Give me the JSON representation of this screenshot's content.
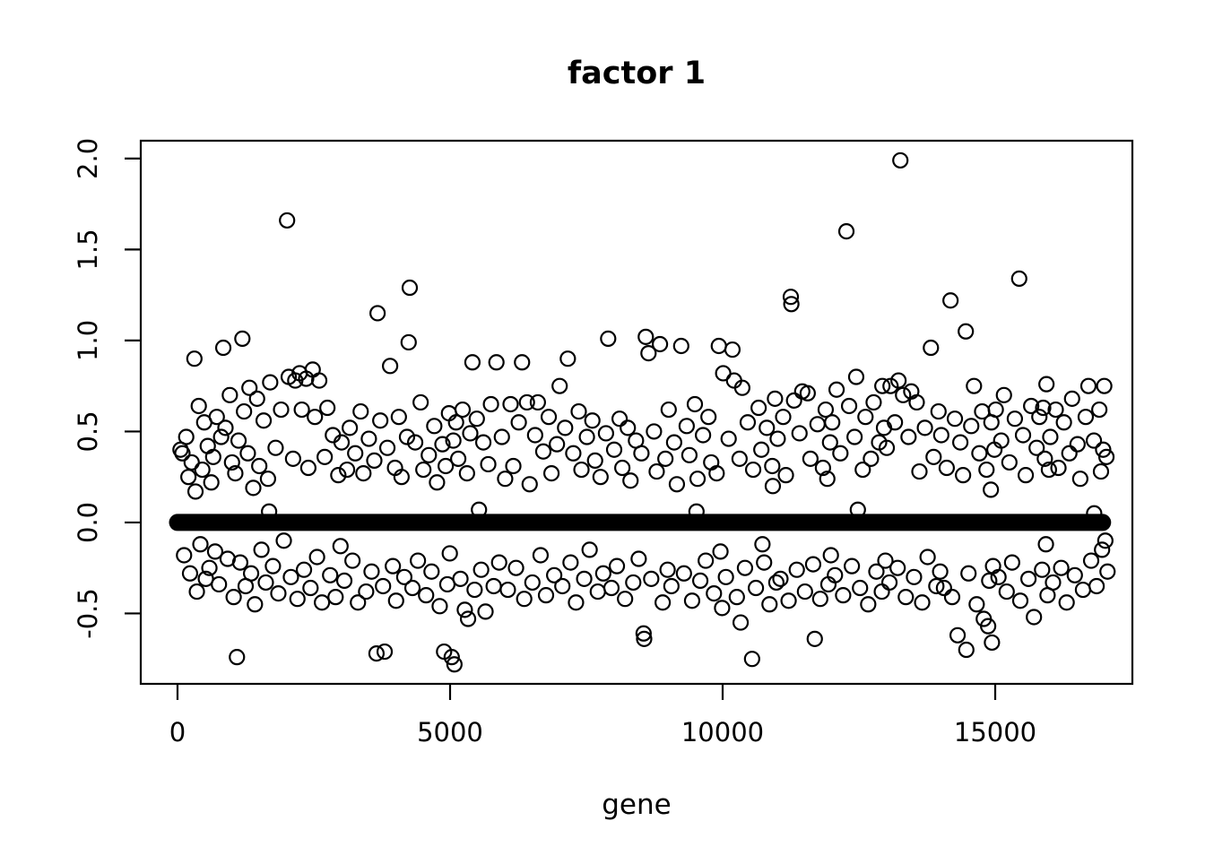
{
  "colors": {
    "foreground": "#000000",
    "background": "#ffffff"
  },
  "chart_data": {
    "type": "scatter",
    "title": "factor 1",
    "xlabel": "gene",
    "ylabel": "",
    "grid": false,
    "legend": null,
    "xlim": [
      -674,
      17516
    ],
    "ylim": [
      -0.887,
      2.098
    ],
    "x_ticks": [
      0,
      5000,
      10000,
      15000
    ],
    "x_tick_labels": [
      "0",
      "5000",
      "10000",
      "15000"
    ],
    "y_ticks": [
      -0.5,
      0.0,
      0.5,
      1.0,
      1.5,
      2.0
    ],
    "y_tick_labels": [
      "-0.5",
      "0.0",
      "0.5",
      "1.0",
      "1.5",
      "2.0"
    ],
    "marker": {
      "shape": "open-circle",
      "radius_px": 8,
      "stroke": "#000000"
    },
    "zero_band": {
      "y": 0.0,
      "x_start": 0,
      "x_end": 16970,
      "thickness_px": 19,
      "note": "dense run of genes with loading 0"
    },
    "points": [
      [
        55,
        0.4
      ],
      [
        90,
        0.38
      ],
      [
        120,
        -0.18
      ],
      [
        160,
        0.47
      ],
      [
        200,
        0.25
      ],
      [
        230,
        -0.28
      ],
      [
        260,
        0.33
      ],
      [
        310,
        0.9
      ],
      [
        330,
        0.17
      ],
      [
        355,
        -0.38
      ],
      [
        390,
        0.64
      ],
      [
        420,
        -0.12
      ],
      [
        455,
        0.29
      ],
      [
        490,
        0.55
      ],
      [
        520,
        -0.31
      ],
      [
        555,
        0.42
      ],
      [
        585,
        -0.25
      ],
      [
        620,
        0.22
      ],
      [
        655,
        0.36
      ],
      [
        690,
        -0.16
      ],
      [
        720,
        0.58
      ],
      [
        760,
        -0.34
      ],
      [
        800,
        0.47
      ],
      [
        840,
        0.96
      ],
      [
        880,
        0.52
      ],
      [
        920,
        -0.2
      ],
      [
        960,
        0.7
      ],
      [
        1000,
        0.33
      ],
      [
        1030,
        -0.41
      ],
      [
        1060,
        0.27
      ],
      [
        1090,
        -0.74
      ],
      [
        1120,
        0.45
      ],
      [
        1150,
        -0.22
      ],
      [
        1190,
        1.01
      ],
      [
        1220,
        0.61
      ],
      [
        1250,
        -0.35
      ],
      [
        1290,
        0.38
      ],
      [
        1320,
        0.74
      ],
      [
        1350,
        -0.28
      ],
      [
        1390,
        0.19
      ],
      [
        1420,
        -0.45
      ],
      [
        1460,
        0.68
      ],
      [
        1500,
        0.31
      ],
      [
        1540,
        -0.15
      ],
      [
        1580,
        0.56
      ],
      [
        1620,
        -0.33
      ],
      [
        1660,
        0.24
      ],
      [
        1680,
        0.06
      ],
      [
        1700,
        0.77
      ],
      [
        1750,
        -0.24
      ],
      [
        1800,
        0.41
      ],
      [
        1850,
        -0.39
      ],
      [
        1900,
        0.62
      ],
      [
        1950,
        -0.1
      ],
      [
        2010,
        1.66
      ],
      [
        2040,
        0.8
      ],
      [
        2080,
        -0.3
      ],
      [
        2120,
        0.35
      ],
      [
        2160,
        0.78
      ],
      [
        2200,
        -0.42
      ],
      [
        2240,
        0.82
      ],
      [
        2280,
        0.62
      ],
      [
        2320,
        -0.26
      ],
      [
        2360,
        0.79
      ],
      [
        2400,
        0.3
      ],
      [
        2440,
        -0.36
      ],
      [
        2480,
        0.84
      ],
      [
        2520,
        0.58
      ],
      [
        2560,
        -0.19
      ],
      [
        2600,
        0.78
      ],
      [
        2650,
        -0.44
      ],
      [
        2700,
        0.36
      ],
      [
        2750,
        0.63
      ],
      [
        2800,
        -0.29
      ],
      [
        2850,
        0.48
      ],
      [
        2900,
        -0.41
      ],
      [
        2950,
        0.26
      ],
      [
        2990,
        -0.13
      ],
      [
        3010,
        0.44
      ],
      [
        3060,
        -0.32
      ],
      [
        3110,
        0.29
      ],
      [
        3160,
        0.52
      ],
      [
        3210,
        -0.21
      ],
      [
        3260,
        0.38
      ],
      [
        3310,
        -0.44
      ],
      [
        3360,
        0.61
      ],
      [
        3410,
        0.27
      ],
      [
        3460,
        -0.38
      ],
      [
        3510,
        0.46
      ],
      [
        3560,
        -0.27
      ],
      [
        3610,
        0.34
      ],
      [
        3650,
        -0.72
      ],
      [
        3670,
        1.15
      ],
      [
        3720,
        0.56
      ],
      [
        3770,
        -0.35
      ],
      [
        3800,
        -0.71
      ],
      [
        3850,
        0.41
      ],
      [
        3900,
        0.86
      ],
      [
        3950,
        -0.24
      ],
      [
        3990,
        0.3
      ],
      [
        4010,
        -0.43
      ],
      [
        4060,
        0.58
      ],
      [
        4110,
        0.25
      ],
      [
        4160,
        -0.3
      ],
      [
        4210,
        0.47
      ],
      [
        4240,
        0.99
      ],
      [
        4260,
        1.29
      ],
      [
        4310,
        -0.36
      ],
      [
        4360,
        0.44
      ],
      [
        4410,
        -0.21
      ],
      [
        4460,
        0.66
      ],
      [
        4510,
        0.29
      ],
      [
        4560,
        -0.4
      ],
      [
        4610,
        0.37
      ],
      [
        4660,
        -0.27
      ],
      [
        4710,
        0.53
      ],
      [
        4760,
        0.22
      ],
      [
        4810,
        -0.46
      ],
      [
        4860,
        0.43
      ],
      [
        4890,
        -0.71
      ],
      [
        4920,
        0.31
      ],
      [
        4950,
        -0.34
      ],
      [
        4980,
        0.6
      ],
      [
        4995,
        -0.17
      ],
      [
        5030,
        -0.74
      ],
      [
        5060,
        0.45
      ],
      [
        5080,
        -0.78
      ],
      [
        5110,
        0.55
      ],
      [
        5150,
        0.35
      ],
      [
        5190,
        -0.31
      ],
      [
        5230,
        0.62
      ],
      [
        5270,
        -0.48
      ],
      [
        5310,
        0.27
      ],
      [
        5330,
        -0.53
      ],
      [
        5370,
        0.49
      ],
      [
        5410,
        0.88
      ],
      [
        5450,
        -0.37
      ],
      [
        5490,
        0.57
      ],
      [
        5530,
        0.07
      ],
      [
        5570,
        -0.26
      ],
      [
        5610,
        0.44
      ],
      [
        5650,
        -0.49
      ],
      [
        5700,
        0.32
      ],
      [
        5750,
        0.65
      ],
      [
        5800,
        -0.35
      ],
      [
        5850,
        0.88
      ],
      [
        5900,
        -0.22
      ],
      [
        5950,
        0.47
      ],
      [
        6010,
        0.24
      ],
      [
        6060,
        -0.37
      ],
      [
        6110,
        0.65
      ],
      [
        6160,
        0.31
      ],
      [
        6210,
        -0.25
      ],
      [
        6260,
        0.55
      ],
      [
        6320,
        0.88
      ],
      [
        6360,
        -0.42
      ],
      [
        6410,
        0.66
      ],
      [
        6460,
        0.21
      ],
      [
        6510,
        -0.33
      ],
      [
        6560,
        0.48
      ],
      [
        6610,
        0.66
      ],
      [
        6660,
        -0.18
      ],
      [
        6710,
        0.39
      ],
      [
        6760,
        -0.4
      ],
      [
        6810,
        0.58
      ],
      [
        6860,
        0.27
      ],
      [
        6910,
        -0.29
      ],
      [
        6960,
        0.43
      ],
      [
        7010,
        0.75
      ],
      [
        7060,
        -0.35
      ],
      [
        7110,
        0.52
      ],
      [
        7160,
        0.9
      ],
      [
        7210,
        -0.22
      ],
      [
        7260,
        0.38
      ],
      [
        7310,
        -0.44
      ],
      [
        7360,
        0.61
      ],
      [
        7410,
        0.29
      ],
      [
        7460,
        -0.31
      ],
      [
        7510,
        0.47
      ],
      [
        7560,
        -0.15
      ],
      [
        7610,
        0.56
      ],
      [
        7660,
        0.34
      ],
      [
        7710,
        -0.38
      ],
      [
        7760,
        0.25
      ],
      [
        7810,
        -0.28
      ],
      [
        7860,
        0.49
      ],
      [
        7900,
        1.01
      ],
      [
        7960,
        -0.36
      ],
      [
        8010,
        0.4
      ],
      [
        8060,
        -0.24
      ],
      [
        8110,
        0.57
      ],
      [
        8160,
        0.3
      ],
      [
        8210,
        -0.42
      ],
      [
        8260,
        0.52
      ],
      [
        8310,
        0.23
      ],
      [
        8360,
        -0.33
      ],
      [
        8410,
        0.45
      ],
      [
        8460,
        -0.2
      ],
      [
        8510,
        0.38
      ],
      [
        8550,
        -0.61
      ],
      [
        8560,
        -0.64
      ],
      [
        8590,
        1.02
      ],
      [
        8640,
        0.93
      ],
      [
        8690,
        -0.31
      ],
      [
        8740,
        0.5
      ],
      [
        8790,
        0.28
      ],
      [
        8850,
        0.98
      ],
      [
        8900,
        -0.44
      ],
      [
        8950,
        0.35
      ],
      [
        8990,
        -0.26
      ],
      [
        9010,
        0.62
      ],
      [
        9060,
        -0.35
      ],
      [
        9110,
        0.44
      ],
      [
        9160,
        0.21
      ],
      [
        9240,
        0.97
      ],
      [
        9290,
        -0.28
      ],
      [
        9340,
        0.53
      ],
      [
        9390,
        0.37
      ],
      [
        9440,
        -0.43
      ],
      [
        9490,
        0.65
      ],
      [
        9520,
        0.06
      ],
      [
        9540,
        0.24
      ],
      [
        9590,
        -0.32
      ],
      [
        9640,
        0.48
      ],
      [
        9690,
        -0.21
      ],
      [
        9740,
        0.58
      ],
      [
        9790,
        0.33
      ],
      [
        9840,
        -0.39
      ],
      [
        9890,
        0.27
      ],
      [
        9930,
        0.97
      ],
      [
        9960,
        -0.16
      ],
      [
        9990,
        -0.47
      ],
      [
        10010,
        0.82
      ],
      [
        10060,
        -0.3
      ],
      [
        10110,
        0.46
      ],
      [
        10180,
        0.95
      ],
      [
        10210,
        0.78
      ],
      [
        10260,
        -0.41
      ],
      [
        10310,
        0.35
      ],
      [
        10330,
        -0.55
      ],
      [
        10360,
        0.74
      ],
      [
        10410,
        -0.25
      ],
      [
        10460,
        0.55
      ],
      [
        10540,
        -0.75
      ],
      [
        10560,
        0.29
      ],
      [
        10610,
        -0.36
      ],
      [
        10660,
        0.63
      ],
      [
        10710,
        0.4
      ],
      [
        10730,
        -0.12
      ],
      [
        10760,
        -0.22
      ],
      [
        10810,
        0.52
      ],
      [
        10860,
        -0.45
      ],
      [
        10910,
        0.31
      ],
      [
        10920,
        0.2
      ],
      [
        10960,
        0.68
      ],
      [
        10985,
        -0.33
      ],
      [
        11010,
        0.46
      ],
      [
        11060,
        -0.31
      ],
      [
        11110,
        0.58
      ],
      [
        11160,
        0.26
      ],
      [
        11210,
        -0.43
      ],
      [
        11250,
        1.24
      ],
      [
        11260,
        1.2
      ],
      [
        11310,
        0.67
      ],
      [
        11360,
        -0.26
      ],
      [
        11410,
        0.49
      ],
      [
        11460,
        0.72
      ],
      [
        11510,
        -0.38
      ],
      [
        11560,
        0.71
      ],
      [
        11610,
        0.35
      ],
      [
        11660,
        -0.23
      ],
      [
        11690,
        -0.64
      ],
      [
        11740,
        0.54
      ],
      [
        11790,
        -0.42
      ],
      [
        11840,
        0.3
      ],
      [
        11890,
        0.62
      ],
      [
        11920,
        0.24
      ],
      [
        11940,
        -0.34
      ],
      [
        11970,
        0.44
      ],
      [
        11985,
        -0.18
      ],
      [
        12010,
        0.55
      ],
      [
        12060,
        -0.29
      ],
      [
        12090,
        0.73
      ],
      [
        12160,
        0.38
      ],
      [
        12210,
        -0.4
      ],
      [
        12270,
        1.6
      ],
      [
        12320,
        0.64
      ],
      [
        12370,
        -0.24
      ],
      [
        12420,
        0.47
      ],
      [
        12450,
        0.8
      ],
      [
        12480,
        0.07
      ],
      [
        12520,
        -0.36
      ],
      [
        12570,
        0.29
      ],
      [
        12620,
        0.58
      ],
      [
        12670,
        -0.45
      ],
      [
        12720,
        0.35
      ],
      [
        12770,
        0.66
      ],
      [
        12820,
        -0.27
      ],
      [
        12870,
        0.44
      ],
      [
        12920,
        -0.38
      ],
      [
        12930,
        0.75
      ],
      [
        12960,
        0.52
      ],
      [
        12985,
        -0.21
      ],
      [
        13010,
        0.41
      ],
      [
        13060,
        -0.33
      ],
      [
        13080,
        0.75
      ],
      [
        13160,
        0.55
      ],
      [
        13210,
        -0.25
      ],
      [
        13226,
        0.78
      ],
      [
        13260,
        1.99
      ],
      [
        13310,
        0.7
      ],
      [
        13360,
        -0.41
      ],
      [
        13410,
        0.47
      ],
      [
        13460,
        0.72
      ],
      [
        13510,
        -0.3
      ],
      [
        13560,
        0.66
      ],
      [
        13610,
        0.28
      ],
      [
        13660,
        -0.44
      ],
      [
        13710,
        0.52
      ],
      [
        13760,
        -0.19
      ],
      [
        13820,
        0.96
      ],
      [
        13870,
        0.36
      ],
      [
        13920,
        -0.35
      ],
      [
        13960,
        0.61
      ],
      [
        13990,
        -0.27
      ],
      [
        14010,
        0.48
      ],
      [
        14060,
        -0.36
      ],
      [
        14110,
        0.3
      ],
      [
        14180,
        1.22
      ],
      [
        14210,
        -0.41
      ],
      [
        14260,
        0.57
      ],
      [
        14310,
        -0.62
      ],
      [
        14360,
        0.44
      ],
      [
        14410,
        0.26
      ],
      [
        14460,
        1.05
      ],
      [
        14470,
        -0.7
      ],
      [
        14510,
        -0.28
      ],
      [
        14560,
        0.53
      ],
      [
        14610,
        0.75
      ],
      [
        14660,
        -0.45
      ],
      [
        14710,
        0.38
      ],
      [
        14760,
        0.61
      ],
      [
        14790,
        -0.53
      ],
      [
        14840,
        0.29
      ],
      [
        14870,
        -0.57
      ],
      [
        14890,
        -0.32
      ],
      [
        14920,
        0.18
      ],
      [
        14930,
        0.55
      ],
      [
        14940,
        -0.66
      ],
      [
        14960,
        -0.24
      ],
      [
        14985,
        0.4
      ],
      [
        15010,
        0.62
      ],
      [
        15060,
        -0.3
      ],
      [
        15110,
        0.45
      ],
      [
        15160,
        0.7
      ],
      [
        15210,
        -0.38
      ],
      [
        15260,
        0.33
      ],
      [
        15310,
        -0.22
      ],
      [
        15360,
        0.57
      ],
      [
        15440,
        1.34
      ],
      [
        15460,
        -0.43
      ],
      [
        15510,
        0.48
      ],
      [
        15560,
        0.26
      ],
      [
        15610,
        -0.31
      ],
      [
        15660,
        0.64
      ],
      [
        15710,
        -0.52
      ],
      [
        15760,
        0.41
      ],
      [
        15810,
        0.58
      ],
      [
        15860,
        -0.26
      ],
      [
        15880,
        0.63
      ],
      [
        15910,
        0.35
      ],
      [
        15930,
        -0.12
      ],
      [
        15940,
        0.76
      ],
      [
        15960,
        -0.4
      ],
      [
        15985,
        0.29
      ],
      [
        16010,
        0.47
      ],
      [
        16060,
        -0.33
      ],
      [
        16110,
        0.62
      ],
      [
        16160,
        0.3
      ],
      [
        16210,
        -0.25
      ],
      [
        16260,
        0.55
      ],
      [
        16310,
        -0.44
      ],
      [
        16360,
        0.38
      ],
      [
        16410,
        0.68
      ],
      [
        16460,
        -0.29
      ],
      [
        16510,
        0.43
      ],
      [
        16560,
        0.24
      ],
      [
        16610,
        -0.37
      ],
      [
        16660,
        0.58
      ],
      [
        16710,
        0.75
      ],
      [
        16760,
        -0.21
      ],
      [
        16810,
        0.45
      ],
      [
        16815,
        0.05
      ],
      [
        16860,
        -0.35
      ],
      [
        16910,
        0.62
      ],
      [
        16940,
        0.28
      ],
      [
        16960,
        -0.15
      ],
      [
        16980,
        0.4
      ],
      [
        17000,
        0.75
      ],
      [
        17020,
        -0.1
      ],
      [
        17040,
        0.36
      ],
      [
        17060,
        -0.27
      ]
    ]
  }
}
